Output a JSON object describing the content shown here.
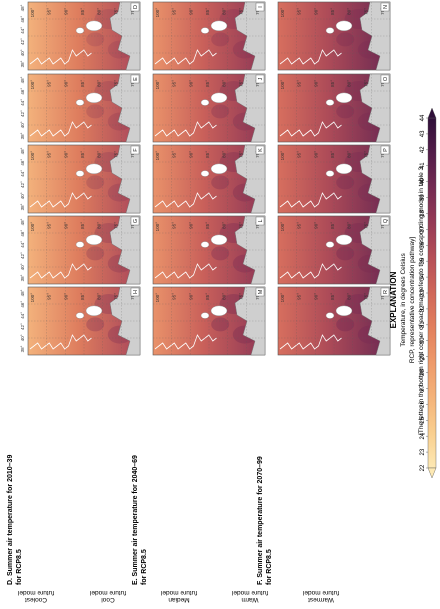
{
  "panels": [
    {
      "id": "D",
      "title_lines": [
        "D. Summer air temperature for 2010–39",
        "for RCP8.5"
      ]
    },
    {
      "id": "E",
      "title_lines": [
        "E. Summer air temperature for 2040–69",
        "for RCP8.5"
      ]
    },
    {
      "id": "F",
      "title_lines": [
        "F. Summer air temperature for 2070–99",
        "for RCP8.5"
      ]
    }
  ],
  "models": [
    {
      "line1": "Coolest",
      "line2": "future model"
    },
    {
      "line1": "Cool",
      "line2": "future model"
    },
    {
      "line1": "Median",
      "line2": "future model"
    },
    {
      "line1": "Warm",
      "line2": "future model"
    },
    {
      "line1": "Warmest",
      "line2": "future model"
    }
  ],
  "map_letters": [
    [
      "D",
      "E",
      "F",
      "G",
      "H"
    ],
    [
      "I",
      "J",
      "K",
      "L",
      "M"
    ],
    [
      "N",
      "O",
      "P",
      "Q",
      "R"
    ]
  ],
  "lat_labels": [
    "70°",
    "75°",
    "80°",
    "85°",
    "90°",
    "95°",
    "100°"
  ],
  "lon_labels": [
    "48°",
    "46°",
    "44°",
    "42°",
    "40°",
    "38°"
  ],
  "explanation": {
    "title": "EXPLANATION",
    "note": "[The letter in the bottom right corner of each map refers to the corresponding model in table 3.",
    "note2": "RCP, representative concentration pathway]",
    "unit_label": "Temperature, in degrees Celsius",
    "ticks": [
      "22",
      "23",
      "24",
      "25",
      "26",
      "27",
      "28",
      "29",
      "30",
      "31",
      "32",
      "33",
      "34",
      "35",
      "36",
      "37",
      "38",
      "39",
      "40",
      "41",
      "42",
      "43",
      "44"
    ]
  },
  "colors": {
    "ramp": [
      "#fde9b4",
      "#f9cf8f",
      "#f4b37a",
      "#ee9a6a",
      "#e2805e",
      "#d06759",
      "#b64f57",
      "#963a55",
      "#742b52",
      "#521d49",
      "#2f0f39"
    ],
    "land_gray": "#cfcfcf",
    "outline": "#4a4a4a"
  }
}
